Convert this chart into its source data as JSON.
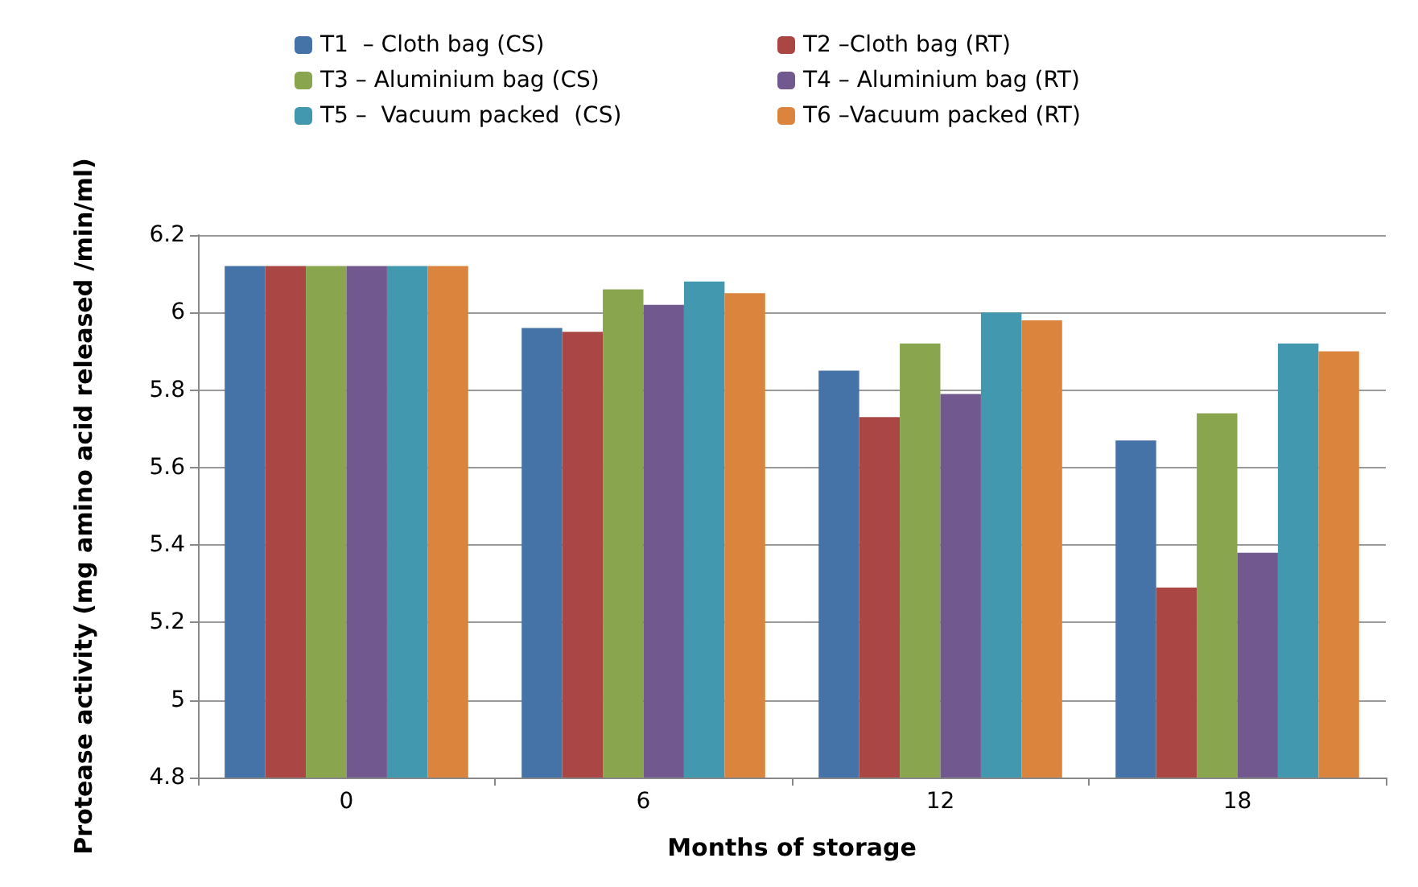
{
  "chart_data": {
    "type": "bar",
    "xlabel": "Months of storage",
    "ylabel": "Protease activity (mg amino acid released /min/ml)",
    "categories": [
      "0",
      "6",
      "12",
      "18"
    ],
    "series": [
      {
        "name": "T1  – Cloth bag (CS)",
        "color": "#4572a7",
        "values": [
          6.12,
          5.96,
          5.85,
          5.67
        ]
      },
      {
        "name": "T2 –Cloth bag (RT)",
        "color": "#aa4643",
        "values": [
          6.12,
          5.95,
          5.73,
          5.29
        ]
      },
      {
        "name": "T3 – Aluminium bag (CS)",
        "color": "#89a54e",
        "values": [
          6.12,
          6.06,
          5.92,
          5.74
        ]
      },
      {
        "name": "T4 – Aluminium bag (RT)",
        "color": "#71588f",
        "values": [
          6.12,
          6.02,
          5.79,
          5.38
        ]
      },
      {
        "name": "T5 –  Vacuum packed  (CS)",
        "color": "#4198af",
        "values": [
          6.12,
          6.08,
          6.0,
          5.92
        ]
      },
      {
        "name": "T6 –Vacuum packed (RT)",
        "color": "#db843d",
        "values": [
          6.12,
          6.05,
          5.98,
          5.9
        ]
      }
    ],
    "ylim": [
      4.8,
      6.2
    ],
    "yticks": [
      4.8,
      5,
      5.2,
      5.4,
      5.6,
      5.8,
      6,
      6.2
    ],
    "grid": "y",
    "legend": "top"
  }
}
